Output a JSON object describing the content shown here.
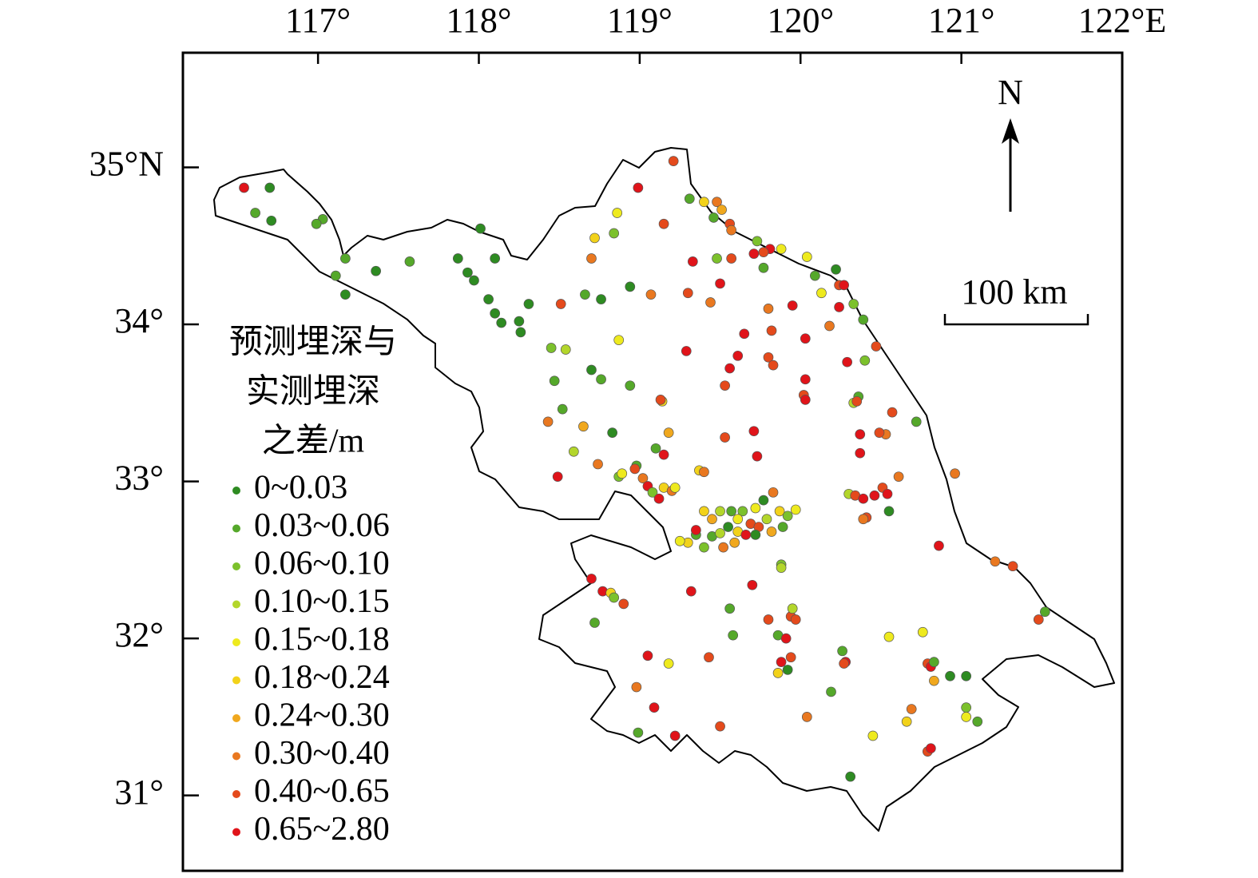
{
  "map": {
    "xlim": [
      116.16,
      122.0
    ],
    "ylim": [
      30.52,
      35.73
    ],
    "xticks": [
      {
        "value": 117,
        "label": "117°"
      },
      {
        "value": 118,
        "label": "118°"
      },
      {
        "value": 119,
        "label": "119°"
      },
      {
        "value": 120,
        "label": "120°"
      },
      {
        "value": 121,
        "label": "121°"
      },
      {
        "value": 122,
        "label": "122°E"
      }
    ],
    "yticks": [
      {
        "value": 35,
        "label": "35°N"
      },
      {
        "value": 34,
        "label": "34°"
      },
      {
        "value": 33,
        "label": "33°"
      },
      {
        "value": 32,
        "label": "32°"
      },
      {
        "value": 31,
        "label": "31°"
      }
    ],
    "north": "N",
    "scale_bar": "100 km",
    "legend": {
      "title": [
        "预测埋深与",
        "实测埋深",
        "之差/m"
      ],
      "classes": [
        {
          "label": "0~0.03",
          "color": "#2e8b22"
        },
        {
          "label": "0.03~0.06",
          "color": "#55a82a"
        },
        {
          "label": "0.06~0.10",
          "color": "#7cc12c"
        },
        {
          "label": "0.10~0.15",
          "color": "#b3d62b"
        },
        {
          "label": "0.15~0.18",
          "color": "#eeea1e"
        },
        {
          "label": "0.18~0.24",
          "color": "#f2d21a"
        },
        {
          "label": "0.24~0.30",
          "color": "#f0a81e"
        },
        {
          "label": "0.30~0.40",
          "color": "#e97820"
        },
        {
          "label": "0.40~0.65",
          "color": "#e44a1c"
        },
        {
          "label": "0.65~2.80",
          "color": "#e0141a"
        }
      ]
    },
    "points": [
      [
        116.54,
        34.87,
        9
      ],
      [
        116.7,
        34.87,
        0
      ],
      [
        116.61,
        34.71,
        1
      ],
      [
        116.71,
        34.66,
        0
      ],
      [
        117.03,
        34.67,
        1
      ],
      [
        116.99,
        34.64,
        1
      ],
      [
        117.17,
        34.42,
        1
      ],
      [
        117.11,
        34.31,
        1
      ],
      [
        117.17,
        34.19,
        0
      ],
      [
        117.36,
        34.34,
        0
      ],
      [
        117.57,
        34.4,
        1
      ],
      [
        117.87,
        34.42,
        0
      ],
      [
        117.93,
        34.33,
        0
      ],
      [
        117.97,
        34.28,
        0
      ],
      [
        118.01,
        34.61,
        0
      ],
      [
        118.1,
        34.42,
        0
      ],
      [
        118.06,
        34.16,
        0
      ],
      [
        118.1,
        34.07,
        0
      ],
      [
        118.14,
        34.01,
        0
      ],
      [
        118.25,
        34.02,
        0
      ],
      [
        118.31,
        34.13,
        0
      ],
      [
        118.26,
        33.95,
        0
      ],
      [
        118.45,
        33.85,
        2
      ],
      [
        118.54,
        33.84,
        3
      ],
      [
        118.47,
        33.64,
        1
      ],
      [
        118.52,
        33.46,
        1
      ],
      [
        118.7,
        33.71,
        0
      ],
      [
        118.76,
        33.65,
        1
      ],
      [
        118.66,
        34.19,
        1
      ],
      [
        118.76,
        34.16,
        0
      ],
      [
        118.51,
        34.13,
        8
      ],
      [
        118.72,
        34.55,
        5
      ],
      [
        118.86,
        34.71,
        4
      ],
      [
        118.84,
        34.58,
        2
      ],
      [
        118.7,
        34.42,
        7
      ],
      [
        118.94,
        34.24,
        0
      ],
      [
        118.99,
        34.87,
        9
      ],
      [
        119.21,
        35.04,
        8
      ],
      [
        119.15,
        34.64,
        8
      ],
      [
        119.31,
        34.8,
        1
      ],
      [
        119.4,
        34.78,
        5
      ],
      [
        119.48,
        34.78,
        7
      ],
      [
        119.51,
        34.73,
        6
      ],
      [
        119.46,
        34.68,
        1
      ],
      [
        119.56,
        34.64,
        8
      ],
      [
        119.57,
        34.6,
        7
      ],
      [
        119.73,
        34.53,
        2
      ],
      [
        119.81,
        34.48,
        9
      ],
      [
        119.71,
        34.45,
        9
      ],
      [
        119.77,
        34.46,
        8
      ],
      [
        119.77,
        34.36,
        1
      ],
      [
        119.88,
        34.48,
        4
      ],
      [
        120.04,
        34.43,
        4
      ],
      [
        120.09,
        34.31,
        1
      ],
      [
        120.22,
        34.35,
        0
      ],
      [
        120.24,
        34.25,
        8
      ],
      [
        120.27,
        34.25,
        9
      ],
      [
        120.13,
        34.2,
        4
      ],
      [
        120.33,
        34.13,
        2
      ],
      [
        120.39,
        34.03,
        1
      ],
      [
        120.18,
        33.99,
        7
      ],
      [
        120.24,
        34.11,
        9
      ],
      [
        119.33,
        34.4,
        9
      ],
      [
        119.48,
        34.42,
        2
      ],
      [
        119.5,
        34.26,
        9
      ],
      [
        119.57,
        34.42,
        8
      ],
      [
        119.3,
        34.2,
        8
      ],
      [
        119.07,
        34.19,
        7
      ],
      [
        119.44,
        34.14,
        7
      ],
      [
        119.8,
        34.1,
        7
      ],
      [
        119.95,
        34.12,
        9
      ],
      [
        119.82,
        33.96,
        8
      ],
      [
        119.65,
        33.94,
        9
      ],
      [
        120.03,
        33.91,
        9
      ],
      [
        118.87,
        33.9,
        4
      ],
      [
        119.29,
        33.83,
        9
      ],
      [
        119.61,
        33.8,
        9
      ],
      [
        119.56,
        33.72,
        9
      ],
      [
        119.8,
        33.79,
        8
      ],
      [
        119.83,
        33.74,
        8
      ],
      [
        120.29,
        33.76,
        9
      ],
      [
        120.4,
        33.77,
        2
      ],
      [
        120.47,
        33.86,
        8
      ],
      [
        120.03,
        33.65,
        9
      ],
      [
        119.53,
        33.61,
        8
      ],
      [
        120.02,
        33.55,
        8
      ],
      [
        120.03,
        33.52,
        9
      ],
      [
        120.36,
        33.54,
        1
      ],
      [
        120.33,
        33.5,
        3
      ],
      [
        120.35,
        33.51,
        8
      ],
      [
        118.94,
        33.61,
        1
      ],
      [
        119.14,
        33.51,
        5
      ],
      [
        119.13,
        33.52,
        8
      ],
      [
        119.71,
        33.32,
        9
      ],
      [
        119.53,
        33.28,
        8
      ],
      [
        119.73,
        33.16,
        9
      ],
      [
        120.57,
        33.44,
        8
      ],
      [
        120.72,
        33.38,
        1
      ],
      [
        120.37,
        33.3,
        9
      ],
      [
        120.53,
        33.3,
        7
      ],
      [
        120.49,
        33.31,
        8
      ],
      [
        120.37,
        33.18,
        9
      ],
      [
        120.96,
        33.05,
        7
      ],
      [
        120.61,
        33.03,
        7
      ],
      [
        118.43,
        33.38,
        7
      ],
      [
        118.65,
        33.35,
        6
      ],
      [
        118.83,
        33.31,
        0
      ],
      [
        118.59,
        33.19,
        3
      ],
      [
        118.74,
        33.11,
        7
      ],
      [
        118.49,
        33.03,
        9
      ],
      [
        119.18,
        33.31,
        6
      ],
      [
        119.1,
        33.21,
        1
      ],
      [
        119.15,
        33.17,
        9
      ],
      [
        118.98,
        33.1,
        1
      ],
      [
        118.97,
        33.08,
        8
      ],
      [
        118.87,
        33.03,
        2
      ],
      [
        118.89,
        33.05,
        4
      ],
      [
        119.02,
        33.02,
        7
      ],
      [
        119.05,
        32.97,
        9
      ],
      [
        119.08,
        32.93,
        2
      ],
      [
        119.15,
        32.96,
        5
      ],
      [
        119.2,
        32.94,
        7
      ],
      [
        119.22,
        32.96,
        4
      ],
      [
        119.12,
        32.89,
        9
      ],
      [
        119.37,
        33.07,
        5
      ],
      [
        119.4,
        33.06,
        7
      ],
      [
        120.3,
        32.92,
        3
      ],
      [
        120.34,
        32.91,
        8
      ],
      [
        120.39,
        32.89,
        9
      ],
      [
        120.46,
        32.91,
        9
      ],
      [
        120.51,
        32.96,
        8
      ],
      [
        120.54,
        32.92,
        9
      ],
      [
        120.41,
        32.77,
        8
      ],
      [
        120.39,
        32.76,
        7
      ],
      [
        120.55,
        32.81,
        0
      ],
      [
        120.86,
        32.59,
        9
      ],
      [
        121.21,
        32.49,
        7
      ],
      [
        121.32,
        32.46,
        8
      ],
      [
        121.52,
        32.17,
        1
      ],
      [
        121.48,
        32.12,
        8
      ],
      [
        119.3,
        32.61,
        5
      ],
      [
        119.35,
        32.66,
        1
      ],
      [
        119.4,
        32.58,
        2
      ],
      [
        119.25,
        32.62,
        4
      ],
      [
        119.45,
        32.76,
        6
      ],
      [
        119.5,
        32.81,
        3
      ],
      [
        119.55,
        32.71,
        0
      ],
      [
        119.57,
        32.81,
        1
      ],
      [
        119.61,
        32.68,
        5
      ],
      [
        119.64,
        32.81,
        2
      ],
      [
        119.69,
        32.73,
        8
      ],
      [
        119.72,
        32.83,
        4
      ],
      [
        119.77,
        32.88,
        0
      ],
      [
        119.79,
        32.76,
        3
      ],
      [
        119.82,
        32.68,
        6
      ],
      [
        119.87,
        32.81,
        5
      ],
      [
        119.92,
        32.78,
        2
      ],
      [
        119.97,
        32.82,
        4
      ],
      [
        119.52,
        32.58,
        7
      ],
      [
        119.59,
        32.61,
        6
      ],
      [
        119.45,
        32.65,
        1
      ],
      [
        119.74,
        32.71,
        8
      ],
      [
        119.83,
        32.93,
        7
      ],
      [
        119.66,
        32.66,
        9
      ],
      [
        119.35,
        32.69,
        9
      ],
      [
        119.5,
        32.67,
        3
      ],
      [
        119.89,
        32.71,
        1
      ],
      [
        119.61,
        32.76,
        4
      ],
      [
        119.72,
        32.66,
        0
      ],
      [
        119.4,
        32.81,
        5
      ],
      [
        118.7,
        32.38,
        9
      ],
      [
        118.77,
        32.3,
        9
      ],
      [
        118.82,
        32.29,
        5
      ],
      [
        118.84,
        32.26,
        2
      ],
      [
        118.9,
        32.22,
        8
      ],
      [
        118.72,
        32.1,
        1
      ],
      [
        119.32,
        32.3,
        9
      ],
      [
        119.7,
        32.34,
        9
      ],
      [
        119.56,
        32.19,
        1
      ],
      [
        119.58,
        32.02,
        1
      ],
      [
        119.88,
        32.47,
        2
      ],
      [
        119.88,
        32.45,
        3
      ],
      [
        119.94,
        32.14,
        8
      ],
      [
        119.97,
        32.12,
        8
      ],
      [
        119.95,
        32.19,
        3
      ],
      [
        119.8,
        32.12,
        8
      ],
      [
        119.86,
        32.02,
        1
      ],
      [
        119.91,
        32.0,
        9
      ],
      [
        119.88,
        31.85,
        9
      ],
      [
        119.94,
        31.88,
        8
      ],
      [
        119.86,
        31.78,
        5
      ],
      [
        119.92,
        31.8,
        0
      ],
      [
        119.05,
        31.89,
        9
      ],
      [
        119.18,
        31.84,
        4
      ],
      [
        119.43,
        31.88,
        8
      ],
      [
        118.98,
        31.69,
        7
      ],
      [
        119.09,
        31.56,
        9
      ],
      [
        118.99,
        31.4,
        1
      ],
      [
        119.22,
        31.38,
        9
      ],
      [
        119.5,
        31.44,
        8
      ],
      [
        120.04,
        31.5,
        7
      ],
      [
        120.19,
        31.66,
        1
      ],
      [
        120.26,
        31.92,
        1
      ],
      [
        120.28,
        31.85,
        9
      ],
      [
        120.27,
        31.84,
        8
      ],
      [
        120.31,
        31.12,
        0
      ],
      [
        120.45,
        31.38,
        4
      ],
      [
        120.55,
        32.01,
        4
      ],
      [
        120.76,
        32.04,
        4
      ],
      [
        120.79,
        31.84,
        8
      ],
      [
        120.81,
        31.82,
        9
      ],
      [
        120.83,
        31.73,
        6
      ],
      [
        120.93,
        31.76,
        0
      ],
      [
        121.03,
        31.76,
        0
      ],
      [
        121.03,
        31.56,
        2
      ],
      [
        121.03,
        31.5,
        4
      ],
      [
        121.1,
        31.47,
        1
      ],
      [
        120.69,
        31.55,
        7
      ],
      [
        120.66,
        31.47,
        5
      ],
      [
        120.79,
        31.28,
        8
      ],
      [
        120.81,
        31.3,
        9
      ],
      [
        120.83,
        31.85,
        1
      ]
    ]
  }
}
